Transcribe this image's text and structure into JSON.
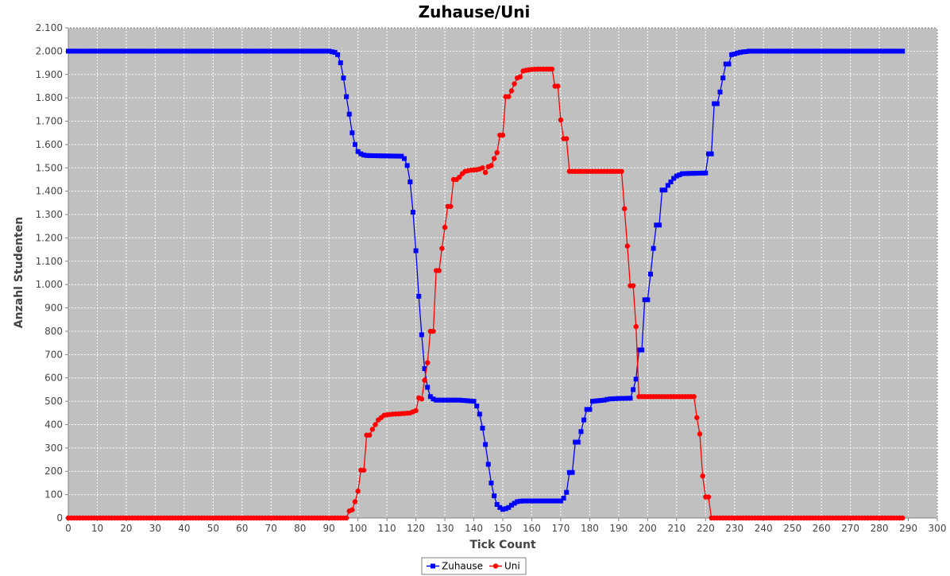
{
  "chart_data": {
    "type": "line",
    "title": "Zuhause/Uni",
    "xlabel": "Tick Count",
    "ylabel": "Anzahl Studenten",
    "xlim": [
      0,
      300
    ],
    "ylim": [
      0,
      2100
    ],
    "x_ticks": [
      0,
      10,
      20,
      30,
      40,
      50,
      60,
      70,
      80,
      90,
      100,
      110,
      120,
      130,
      140,
      150,
      160,
      170,
      180,
      190,
      200,
      210,
      220,
      230,
      240,
      250,
      260,
      270,
      280,
      290,
      300
    ],
    "y_ticks": [
      {
        "value": 0,
        "label": "0"
      },
      {
        "value": 100,
        "label": "100"
      },
      {
        "value": 200,
        "label": "200"
      },
      {
        "value": 300,
        "label": "300"
      },
      {
        "value": 400,
        "label": "400"
      },
      {
        "value": 500,
        "label": "500"
      },
      {
        "value": 600,
        "label": "600"
      },
      {
        "value": 700,
        "label": "700"
      },
      {
        "value": 800,
        "label": "800"
      },
      {
        "value": 900,
        "label": "900"
      },
      {
        "value": 1000,
        "label": "1.000"
      },
      {
        "value": 1100,
        "label": "1.100"
      },
      {
        "value": 1200,
        "label": "1.200"
      },
      {
        "value": 1300,
        "label": "1.300"
      },
      {
        "value": 1400,
        "label": "1.400"
      },
      {
        "value": 1500,
        "label": "1.500"
      },
      {
        "value": 1600,
        "label": "1.600"
      },
      {
        "value": 1700,
        "label": "1.700"
      },
      {
        "value": 1800,
        "label": "1.800"
      },
      {
        "value": 1900,
        "label": "1.900"
      },
      {
        "value": 2000,
        "label": "2.000"
      },
      {
        "value": 2100,
        "label": "2.100"
      }
    ],
    "grid": true,
    "legend_position": "bottom-center",
    "series": [
      {
        "name": "Zuhause",
        "color": "#0000ff",
        "marker": "square",
        "points": [
          [
            0,
            2000
          ],
          [
            90,
            2000
          ],
          [
            92,
            1995
          ],
          [
            93,
            1985
          ],
          [
            94,
            1950
          ],
          [
            95,
            1885
          ],
          [
            96,
            1805
          ],
          [
            97,
            1730
          ],
          [
            98,
            1650
          ],
          [
            99,
            1600
          ],
          [
            100,
            1570
          ],
          [
            101,
            1560
          ],
          [
            102,
            1555
          ],
          [
            103,
            1553
          ],
          [
            105,
            1552
          ],
          [
            115,
            1550
          ],
          [
            116,
            1540
          ],
          [
            117,
            1510
          ],
          [
            118,
            1440
          ],
          [
            119,
            1310
          ],
          [
            120,
            1145
          ],
          [
            121,
            950
          ],
          [
            122,
            785
          ],
          [
            123,
            640
          ],
          [
            124,
            560
          ],
          [
            125,
            520
          ],
          [
            126,
            510
          ],
          [
            127,
            505
          ],
          [
            135,
            505
          ],
          [
            140,
            500
          ],
          [
            141,
            480
          ],
          [
            142,
            445
          ],
          [
            143,
            385
          ],
          [
            144,
            315
          ],
          [
            145,
            230
          ],
          [
            146,
            150
          ],
          [
            147,
            95
          ],
          [
            148,
            58
          ],
          [
            149,
            45
          ],
          [
            150,
            37
          ],
          [
            151,
            40
          ],
          [
            152,
            45
          ],
          [
            153,
            55
          ],
          [
            154,
            63
          ],
          [
            155,
            70
          ],
          [
            156,
            72
          ],
          [
            157,
            73
          ],
          [
            165,
            73
          ],
          [
            170,
            73
          ],
          [
            171,
            85
          ],
          [
            172,
            110
          ],
          [
            173,
            195
          ],
          [
            174,
            195
          ],
          [
            175,
            325
          ],
          [
            176,
            325
          ],
          [
            177,
            370
          ],
          [
            178,
            420
          ],
          [
            179,
            465
          ],
          [
            180,
            465
          ],
          [
            181,
            500
          ],
          [
            185,
            505
          ],
          [
            186,
            508
          ],
          [
            187,
            510
          ],
          [
            190,
            512
          ],
          [
            194,
            513
          ],
          [
            195,
            550
          ],
          [
            196,
            595
          ],
          [
            197,
            720
          ],
          [
            198,
            720
          ],
          [
            199,
            935
          ],
          [
            200,
            935
          ],
          [
            201,
            1045
          ],
          [
            202,
            1155
          ],
          [
            203,
            1255
          ],
          [
            204,
            1255
          ],
          [
            205,
            1405
          ],
          [
            206,
            1405
          ],
          [
            207,
            1425
          ],
          [
            208,
            1440
          ],
          [
            209,
            1455
          ],
          [
            210,
            1465
          ],
          [
            211,
            1470
          ],
          [
            212,
            1475
          ],
          [
            214,
            1476
          ],
          [
            220,
            1478
          ],
          [
            221,
            1560
          ],
          [
            222,
            1560
          ],
          [
            223,
            1775
          ],
          [
            224,
            1775
          ],
          [
            225,
            1825
          ],
          [
            226,
            1885
          ],
          [
            227,
            1945
          ],
          [
            228,
            1945
          ],
          [
            229,
            1985
          ],
          [
            230,
            1988
          ],
          [
            231,
            1992
          ],
          [
            232,
            1995
          ],
          [
            233,
            1997
          ],
          [
            234,
            1998
          ],
          [
            235,
            2000
          ],
          [
            288,
            2000
          ]
        ]
      },
      {
        "name": "Uni",
        "color": "#ff0000",
        "marker": "circle",
        "points": [
          [
            0,
            0
          ],
          [
            95,
            0
          ],
          [
            96,
            0
          ],
          [
            97,
            30
          ],
          [
            98,
            35
          ],
          [
            99,
            70
          ],
          [
            100,
            115
          ],
          [
            101,
            205
          ],
          [
            102,
            205
          ],
          [
            103,
            355
          ],
          [
            104,
            355
          ],
          [
            105,
            380
          ],
          [
            106,
            400
          ],
          [
            107,
            420
          ],
          [
            108,
            430
          ],
          [
            109,
            440
          ],
          [
            110,
            442
          ],
          [
            112,
            445
          ],
          [
            115,
            447
          ],
          [
            118,
            450
          ],
          [
            119,
            455
          ],
          [
            120,
            460
          ],
          [
            121,
            515
          ],
          [
            122,
            510
          ],
          [
            123,
            590
          ],
          [
            124,
            665
          ],
          [
            125,
            800
          ],
          [
            126,
            800
          ],
          [
            127,
            1060
          ],
          [
            128,
            1060
          ],
          [
            129,
            1155
          ],
          [
            130,
            1245
          ],
          [
            131,
            1335
          ],
          [
            132,
            1335
          ],
          [
            133,
            1450
          ],
          [
            134,
            1450
          ],
          [
            135,
            1460
          ],
          [
            136,
            1475
          ],
          [
            137,
            1485
          ],
          [
            138,
            1488
          ],
          [
            139,
            1490
          ],
          [
            141,
            1492
          ],
          [
            142,
            1495
          ],
          [
            143,
            1500
          ],
          [
            144,
            1480
          ],
          [
            145,
            1505
          ],
          [
            146,
            1510
          ],
          [
            147,
            1540
          ],
          [
            148,
            1565
          ],
          [
            149,
            1640
          ],
          [
            150,
            1640
          ],
          [
            151,
            1805
          ],
          [
            152,
            1805
          ],
          [
            153,
            1830
          ],
          [
            154,
            1860
          ],
          [
            155,
            1885
          ],
          [
            156,
            1890
          ],
          [
            157,
            1915
          ],
          [
            158,
            1918
          ],
          [
            159,
            1920
          ],
          [
            160,
            1922
          ],
          [
            162,
            1923
          ],
          [
            167,
            1923
          ],
          [
            168,
            1850
          ],
          [
            169,
            1850
          ],
          [
            170,
            1705
          ],
          [
            171,
            1625
          ],
          [
            172,
            1625
          ],
          [
            173,
            1485
          ],
          [
            180,
            1485
          ],
          [
            190,
            1485
          ],
          [
            191,
            1485
          ],
          [
            192,
            1325
          ],
          [
            193,
            1165
          ],
          [
            194,
            995
          ],
          [
            195,
            995
          ],
          [
            196,
            820
          ],
          [
            197,
            520
          ],
          [
            200,
            520
          ],
          [
            210,
            520
          ],
          [
            215,
            520
          ],
          [
            216,
            520
          ],
          [
            217,
            430
          ],
          [
            218,
            360
          ],
          [
            219,
            180
          ],
          [
            220,
            90
          ],
          [
            221,
            90
          ],
          [
            222,
            0
          ],
          [
            288,
            0
          ]
        ]
      }
    ]
  }
}
